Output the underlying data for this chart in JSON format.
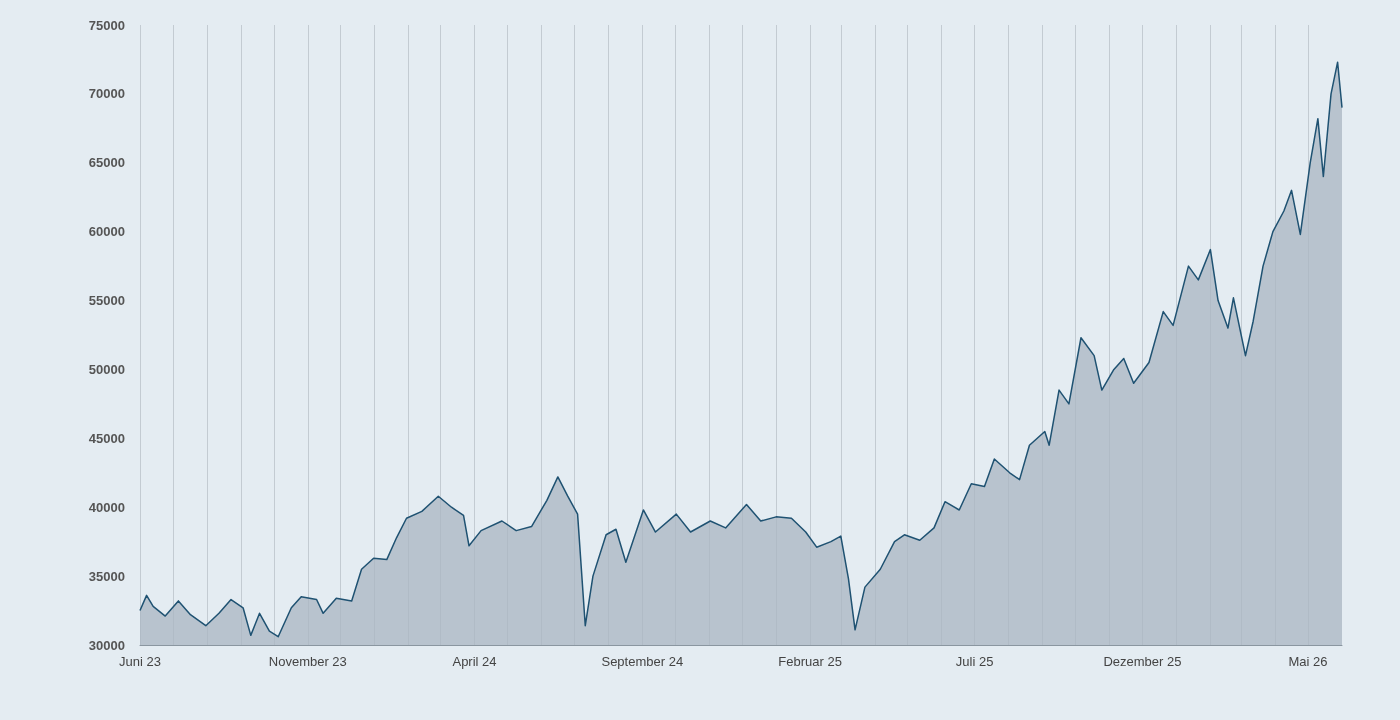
{
  "chart_data": {
    "type": "area",
    "x": [
      "2023-06-26",
      "2023-07-02",
      "2023-07-08",
      "2023-07-19",
      "2023-07-31",
      "2023-08-11",
      "2023-08-25",
      "2023-09-06",
      "2023-09-17",
      "2023-09-28",
      "2023-10-05",
      "2023-10-13",
      "2023-10-22",
      "2023-10-30",
      "2023-11-11",
      "2023-11-20",
      "2023-12-04",
      "2023-12-10",
      "2023-12-22",
      "2024-01-05",
      "2024-01-14",
      "2024-01-25",
      "2024-02-06",
      "2024-02-15",
      "2024-02-24",
      "2024-03-09",
      "2024-03-24",
      "2024-04-05",
      "2024-04-16",
      "2024-04-21",
      "2024-05-02",
      "2024-05-21",
      "2024-06-03",
      "2024-06-17",
      "2024-07-01",
      "2024-07-11",
      "2024-07-20",
      "2024-07-29",
      "2024-08-05",
      "2024-08-12",
      "2024-08-24",
      "2024-09-02",
      "2024-09-11",
      "2024-09-27",
      "2024-10-08",
      "2024-10-27",
      "2024-11-09",
      "2024-11-27",
      "2024-12-11",
      "2024-12-30",
      "2025-01-12",
      "2025-01-26",
      "2025-02-09",
      "2025-02-22",
      "2025-03-04",
      "2025-03-17",
      "2025-03-26",
      "2025-04-02",
      "2025-04-08",
      "2025-04-17",
      "2025-05-01",
      "2025-05-14",
      "2025-05-23",
      "2025-06-06",
      "2025-06-19",
      "2025-06-29",
      "2025-07-12",
      "2025-07-23",
      "2025-08-04",
      "2025-08-13",
      "2025-08-27",
      "2025-09-05",
      "2025-09-14",
      "2025-09-28",
      "2025-10-02",
      "2025-10-11",
      "2025-10-20",
      "2025-10-31",
      "2025-11-12",
      "2025-11-19",
      "2025-11-30",
      "2025-12-09",
      "2025-12-18",
      "2026-01-01",
      "2026-01-14",
      "2026-01-23",
      "2026-02-06",
      "2026-02-15",
      "2026-02-26",
      "2026-03-05",
      "2026-03-14",
      "2026-03-19",
      "2026-03-30",
      "2026-04-06",
      "2026-04-15",
      "2026-04-24",
      "2026-05-04",
      "2026-05-11",
      "2026-05-19",
      "2026-05-28",
      "2026-06-04",
      "2026-06-09",
      "2026-06-16",
      "2026-06-22",
      "2026-06-26"
    ],
    "series": [
      {
        "color": "#1f5272",
        "values": [
          32500,
          33600,
          32800,
          32100,
          33200,
          32200,
          31400,
          32300,
          33300,
          32700,
          30700,
          32300,
          31000,
          30600,
          32700,
          33500,
          33300,
          32300,
          33400,
          33200,
          35500,
          36300,
          36200,
          37800,
          39200,
          39700,
          40800,
          40000,
          39400,
          37200,
          38300,
          39000,
          38300,
          38600,
          40500,
          42200,
          40800,
          39500,
          31400,
          35000,
          38000,
          38400,
          36000,
          39800,
          38200,
          39500,
          38200,
          39000,
          38500,
          40200,
          39000,
          39300,
          39200,
          38200,
          37100,
          37500,
          37900,
          34800,
          31100,
          34200,
          35500,
          37500,
          38000,
          37600,
          38500,
          40400,
          39800,
          41700,
          41500,
          43500,
          42500,
          42000,
          44500,
          45500,
          44500,
          48500,
          47500,
          52300,
          51000,
          48500,
          50000,
          50800,
          49000,
          50500,
          54200,
          53200,
          57500,
          56500,
          58700,
          55000,
          53000,
          55200,
          51000,
          53500,
          57500,
          60000,
          61500,
          63000,
          59800,
          65000,
          68200,
          64000,
          70000,
          72300,
          69000
        ]
      }
    ],
    "xlim": [
      "2023-06-26",
      "2026-06-26"
    ],
    "xticks": [
      {
        "value": "2023-06-26",
        "label": "Juni 23"
      },
      {
        "value": "2023-07-26",
        "label": null
      },
      {
        "value": "2023-08-26",
        "label": null
      },
      {
        "value": "2023-09-26",
        "label": null
      },
      {
        "value": "2023-10-26",
        "label": null
      },
      {
        "value": "2023-11-26",
        "label": "November 23"
      },
      {
        "value": "2023-12-26",
        "label": null
      },
      {
        "value": "2024-01-26",
        "label": null
      },
      {
        "value": "2024-02-26",
        "label": null
      },
      {
        "value": "2024-03-26",
        "label": null
      },
      {
        "value": "2024-04-26",
        "label": "April 24"
      },
      {
        "value": "2024-05-26",
        "label": null
      },
      {
        "value": "2024-06-26",
        "label": null
      },
      {
        "value": "2024-07-26",
        "label": null
      },
      {
        "value": "2024-08-26",
        "label": null
      },
      {
        "value": "2024-09-26",
        "label": "September 24"
      },
      {
        "value": "2024-10-26",
        "label": null
      },
      {
        "value": "2024-11-26",
        "label": null
      },
      {
        "value": "2024-12-26",
        "label": null
      },
      {
        "value": "2025-01-26",
        "label": null
      },
      {
        "value": "2025-02-26",
        "label": "Februar 25"
      },
      {
        "value": "2025-03-26",
        "label": null
      },
      {
        "value": "2025-04-26",
        "label": null
      },
      {
        "value": "2025-05-26",
        "label": null
      },
      {
        "value": "2025-06-26",
        "label": null
      },
      {
        "value": "2025-07-26",
        "label": "Juli 25"
      },
      {
        "value": "2025-08-26",
        "label": null
      },
      {
        "value": "2025-09-26",
        "label": null
      },
      {
        "value": "2025-10-26",
        "label": null
      },
      {
        "value": "2025-11-26",
        "label": null
      },
      {
        "value": "2025-12-26",
        "label": "Dezember 25"
      },
      {
        "value": "2026-01-26",
        "label": null
      },
      {
        "value": "2026-02-26",
        "label": null
      },
      {
        "value": "2026-03-26",
        "label": null
      },
      {
        "value": "2026-04-26",
        "label": null
      },
      {
        "value": "2026-05-26",
        "label": "Mai 26"
      }
    ],
    "ylim": [
      30000,
      75000
    ],
    "yticks": [
      30000,
      35000,
      40000,
      45000,
      50000,
      55000,
      60000,
      65000,
      70000,
      75000
    ],
    "grid": "x"
  }
}
